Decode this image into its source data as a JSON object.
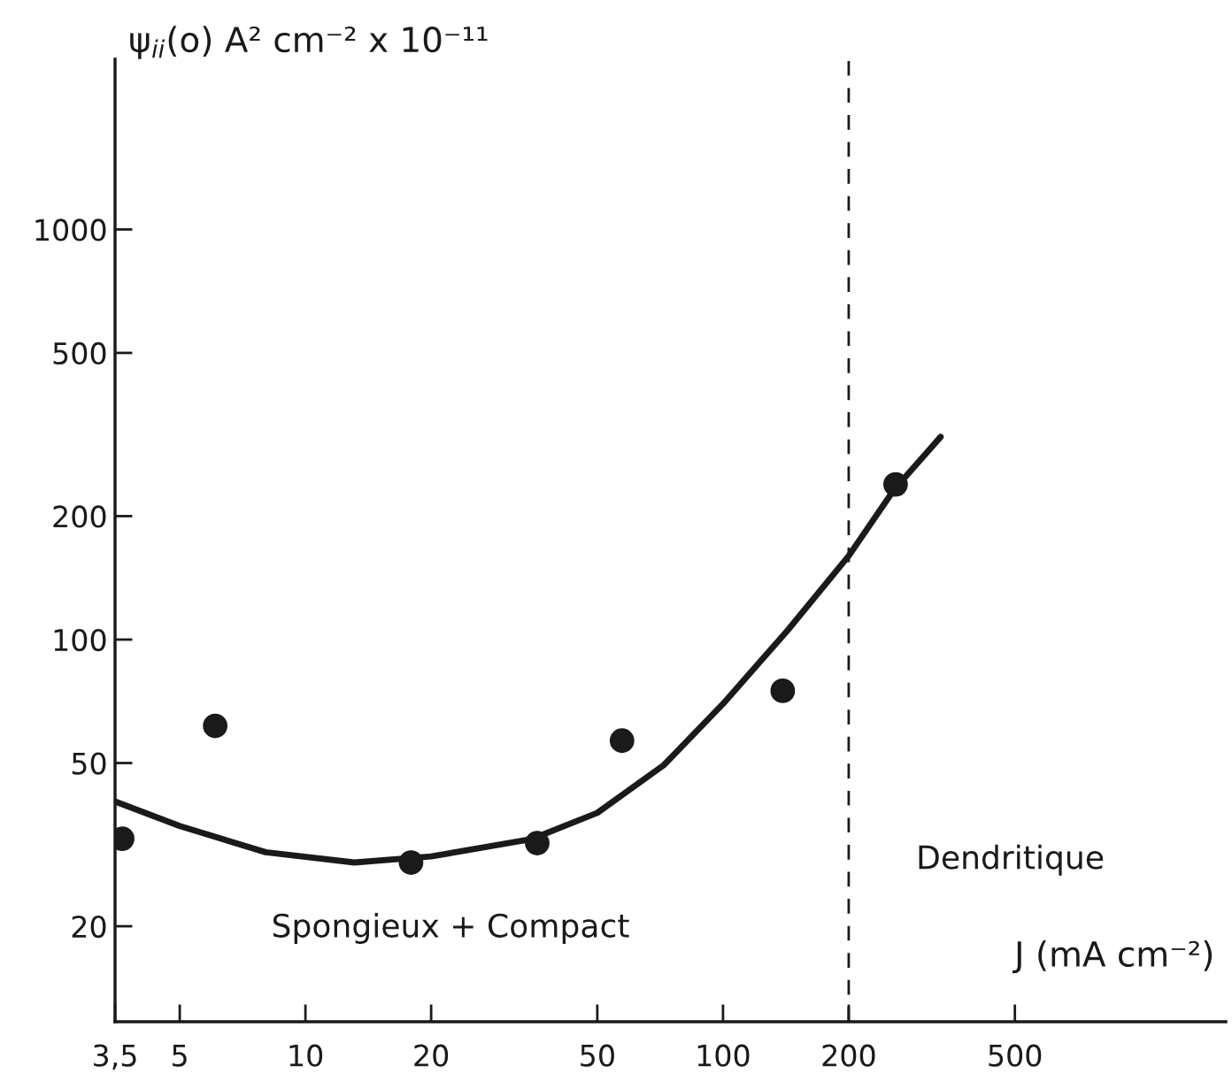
{
  "chart_data": {
    "type": "scatter",
    "log": "xy",
    "ylabel": "ψ$_{ii}$(o) A² cm⁻² x 10⁻¹¹",
    "xlabel": "J (mA cm⁻²)",
    "xlim": [
      3.5,
      1600
    ],
    "ylim": [
      11.7,
      2600
    ],
    "xticks": [
      {
        "value": 3.5,
        "label": "3,5"
      },
      5,
      10,
      20,
      50,
      100,
      200,
      500
    ],
    "yticks": [
      20,
      50,
      100,
      200,
      500,
      1000
    ],
    "grid": false,
    "legend": false,
    "marker": "circle",
    "series": [
      {
        "color": "#1a1a1a",
        "x": [
          3.64,
          6.08,
          17.9,
          35.9,
          57.3,
          139,
          259
        ],
        "values": [
          32.7,
          61.6,
          28.6,
          31.9,
          56.7,
          75,
          239
        ]
      },
      {
        "type": "line",
        "color": "#1a1a1a",
        "line_style": "solid",
        "marker": "none",
        "x": [
          3.5,
          5,
          8.03,
          13.1,
          20,
          34.7,
          50,
          72.1,
          100,
          143,
          200,
          256,
          332
        ],
        "values": [
          40.3,
          35.1,
          30.3,
          28.6,
          29.6,
          32.6,
          37.8,
          49.4,
          69.7,
          105.5,
          160,
          231,
          312
        ]
      }
    ],
    "ref_lines": [
      {
        "axis": "x",
        "value": 200,
        "label": null,
        "color": "#1a1a1a",
        "line_style": "dashed"
      }
    ],
    "annotations": [
      "Spongieux + Compact",
      "Dendritique"
    ]
  }
}
